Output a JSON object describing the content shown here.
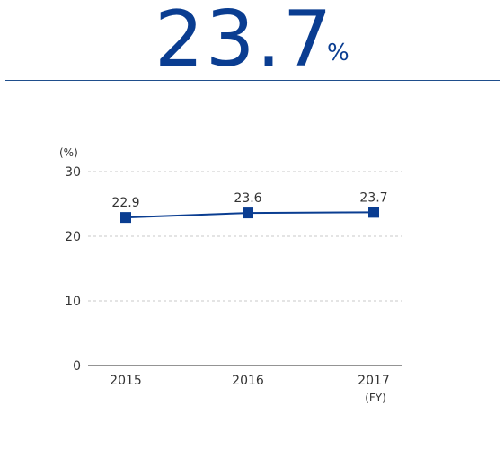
{
  "headline": {
    "value": "23.7",
    "unit": "%"
  },
  "chart_data": {
    "type": "line",
    "title": "",
    "xlabel": "",
    "ylabel": "",
    "y_unit_label": "(%)",
    "x_unit_label": "(FY)",
    "categories": [
      "2015",
      "2016",
      "2017"
    ],
    "series": [
      {
        "values": [
          22.9,
          23.6,
          23.7
        ],
        "data_labels": [
          "22.9",
          "23.6",
          "23.7"
        ],
        "color": "#0a3d91"
      }
    ],
    "yticks": [
      0,
      10,
      20,
      30
    ],
    "ylim": [
      0,
      30
    ],
    "grid": true,
    "grid_style": "dashed",
    "highlight_last_label_color": "#3a64a8"
  },
  "colors": {
    "accent": "#0a3d91",
    "rule": "#1f4e8c",
    "grid": "#c8c8c8",
    "axis": "#555555",
    "text": "#333333"
  }
}
